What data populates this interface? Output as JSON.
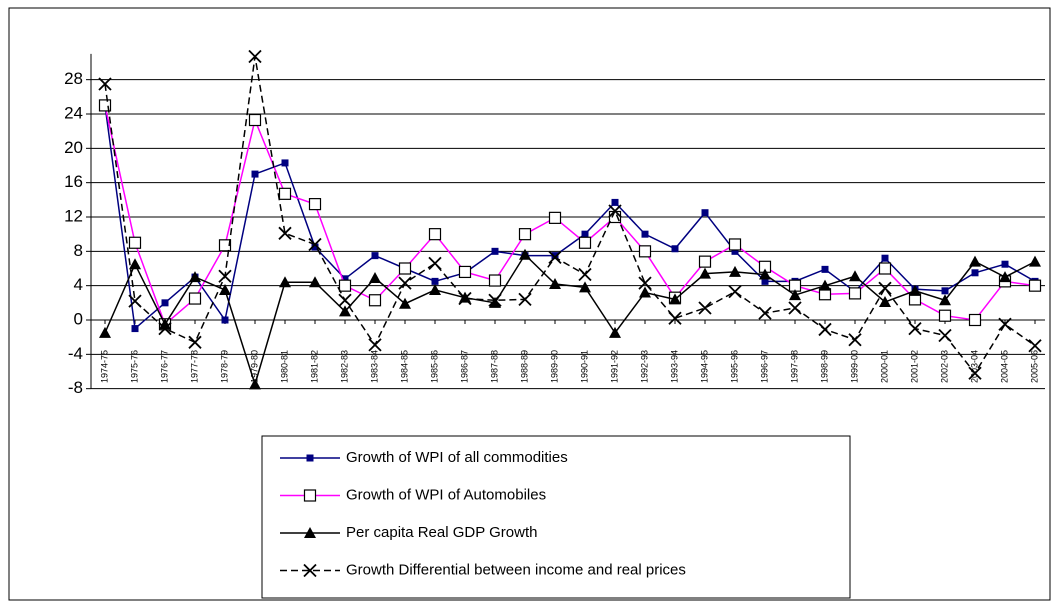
{
  "chart_data": {
    "type": "line",
    "categories": [
      "1974-75",
      "1975-76",
      "1976-77",
      "1977-78",
      "1978-79",
      "1979-80",
      "1980-81",
      "1981-82",
      "1982-83",
      "1983-84",
      "1984-85",
      "1985-86",
      "1986-87",
      "1987-88",
      "1988-89",
      "1989-90",
      "1990-91",
      "1991-92",
      "1992-93",
      "1993-94",
      "1994-95",
      "1995-96",
      "1996-97",
      "1997-98",
      "1998-99",
      "1999-00",
      "2000-01",
      "2001-02",
      "2002-03",
      "2003-04",
      "2004-05",
      "2005-06"
    ],
    "series": [
      {
        "name": "Growth of WPI of all commodities",
        "color": "#000080",
        "marker": "square",
        "values": [
          25,
          -1,
          2,
          5,
          0,
          17,
          18.3,
          8.5,
          4.8,
          7.5,
          6,
          4.5,
          5.5,
          8,
          7.5,
          7.5,
          10,
          13.7,
          10,
          8.3,
          12.5,
          8,
          4.5,
          4.5,
          5.9,
          3.3,
          7.2,
          3.6,
          3.4,
          5.5,
          6.5,
          4.5
        ]
      },
      {
        "name": "Growth of WPI of Automobiles",
        "color": "#ff00ff",
        "marker": "hollow-square",
        "values": [
          25,
          9,
          -0.5,
          2.5,
          8.7,
          23.3,
          14.7,
          13.5,
          4,
          2.3,
          6,
          10,
          5.6,
          4.6,
          10,
          11.9,
          9,
          12,
          8,
          2.6,
          6.8,
          8.8,
          6.2,
          4,
          3,
          3.1,
          6,
          2.4,
          0.5,
          0,
          4.5,
          4
        ]
      },
      {
        "name": "Per capita Real GDP Growth",
        "color": "#000000",
        "marker": "triangle",
        "values": [
          -1.5,
          6.5,
          -0.5,
          5,
          3.5,
          -7.5,
          4.4,
          4.4,
          1,
          4.9,
          1.9,
          3.5,
          2.6,
          2,
          7.6,
          4.2,
          3.8,
          -1.5,
          3.2,
          2.4,
          5.4,
          5.6,
          5.3,
          2.9,
          4,
          5.1,
          2.1,
          3.4,
          2.3,
          6.8,
          5,
          6.8
        ]
      },
      {
        "name": "Growth Differential between income and real prices",
        "color": "#000000",
        "marker": "cross",
        "dashed": true,
        "values": [
          27.5,
          2.2,
          -1,
          -2.6,
          5.1,
          30.7,
          10.1,
          8.8,
          2.3,
          -2.9,
          4.3,
          6.6,
          2.5,
          2.3,
          2.4,
          7.3,
          5.3,
          12.7,
          4.3,
          0.2,
          1.4,
          3.3,
          0.8,
          1.4,
          -1.1,
          -2.3,
          3.7,
          -1,
          -1.8,
          -6.2,
          -0.5,
          -3
        ]
      }
    ],
    "ylim": [
      -8,
      31
    ],
    "yticks": [
      -8,
      -4,
      0,
      4,
      8,
      12,
      16,
      20,
      24,
      28
    ],
    "grid": true,
    "legend": "bottom"
  }
}
